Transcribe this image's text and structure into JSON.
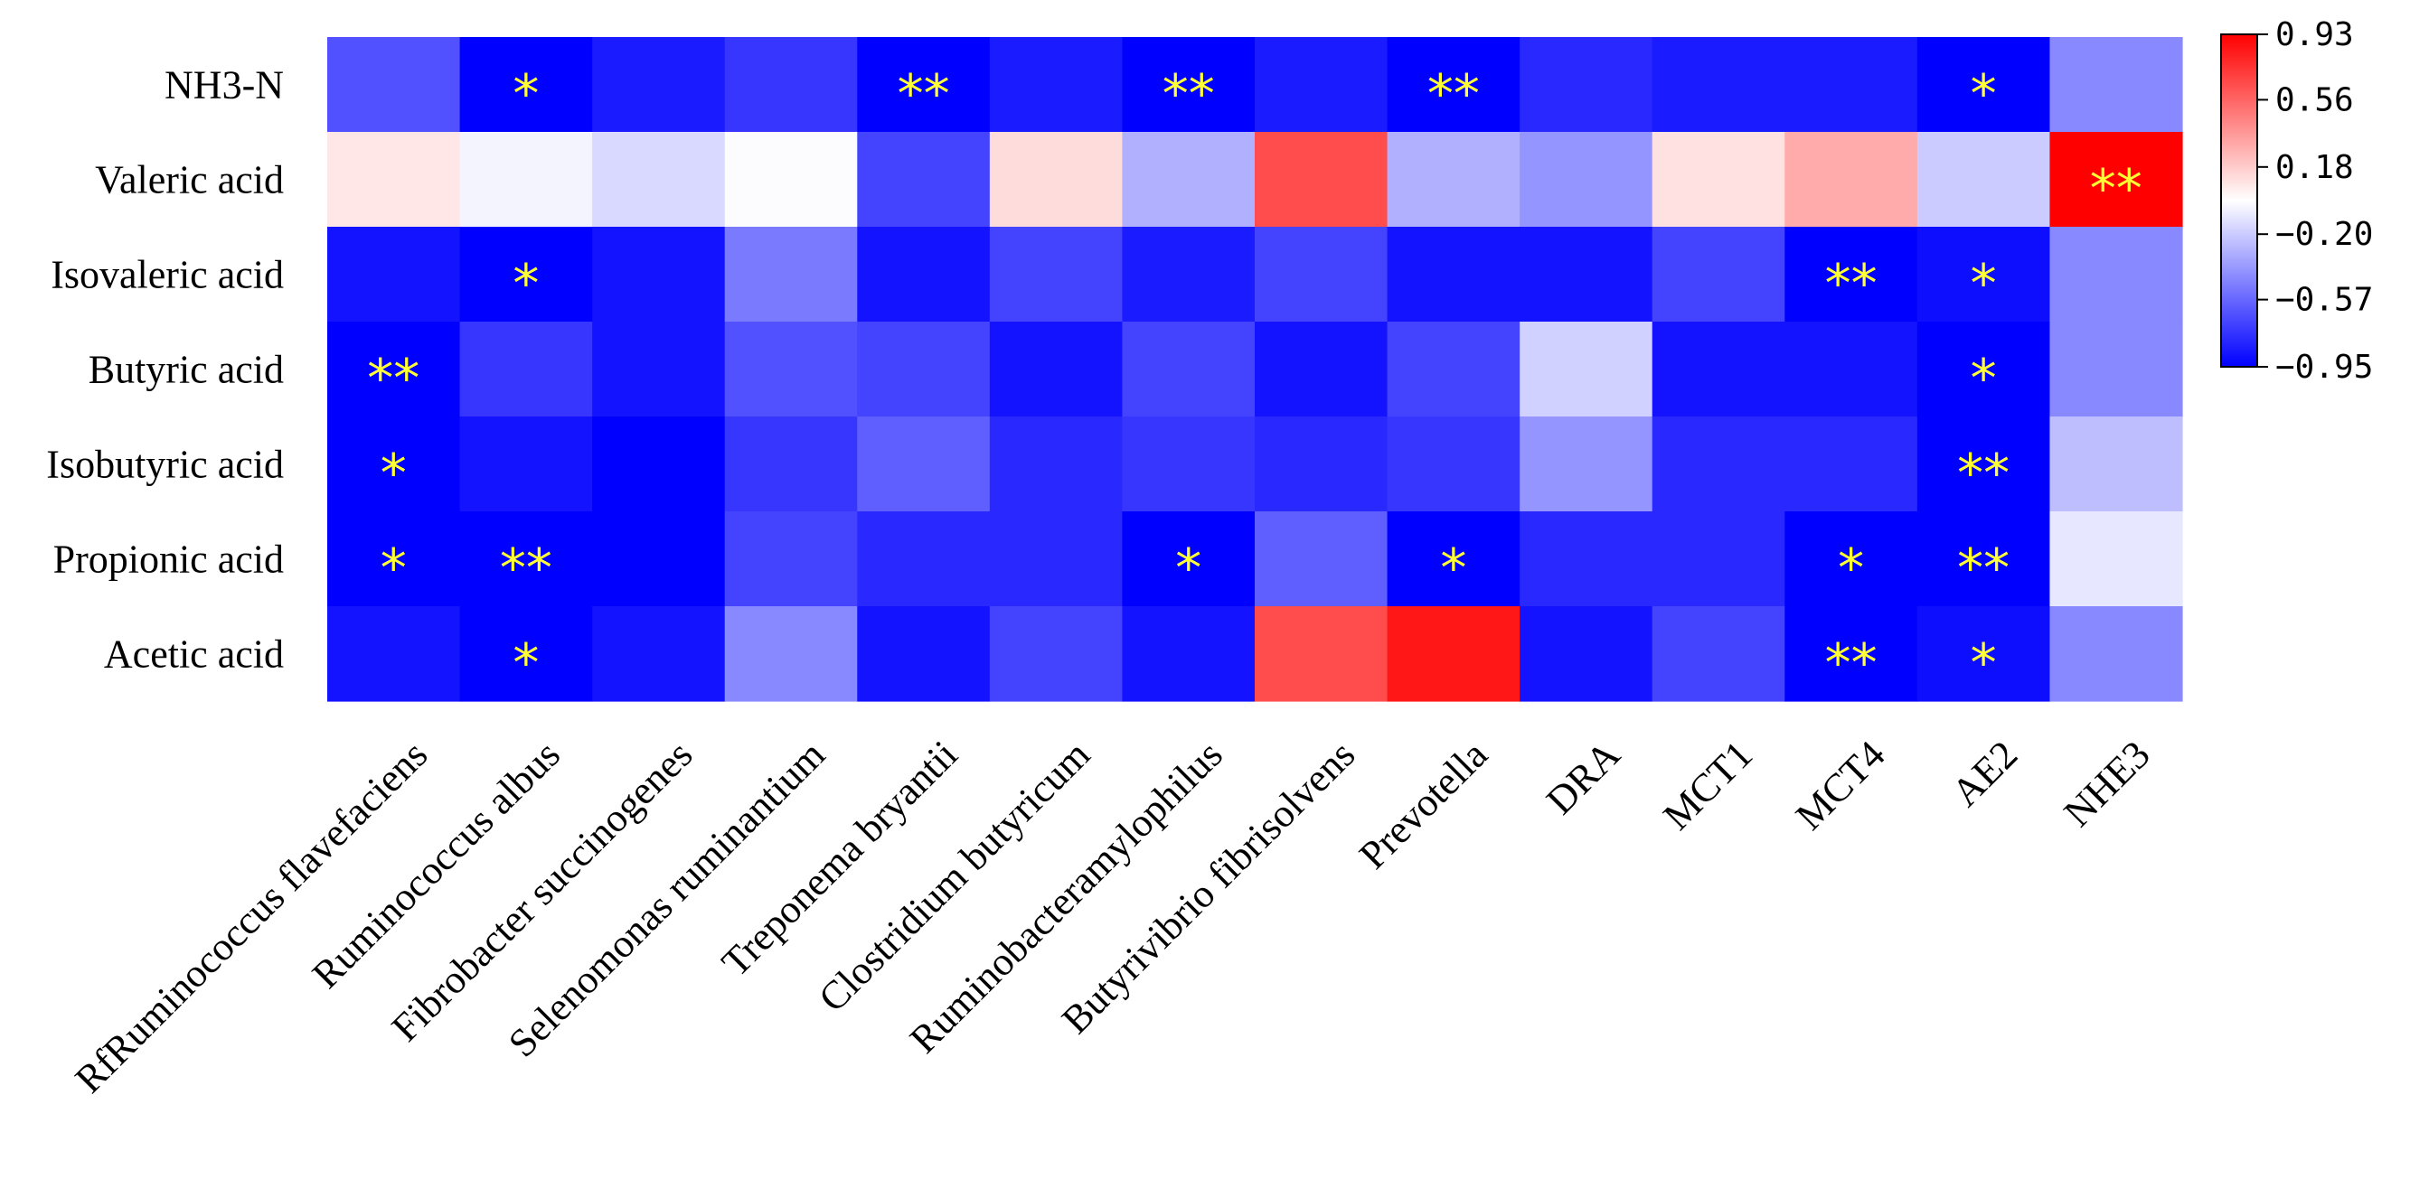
{
  "chart_data": {
    "type": "heatmap",
    "title": "",
    "rows": [
      "NH3-N",
      "Valeric acid",
      "Isovaleric acid",
      "Butyric acid",
      "Isobutyric acid",
      "Propionic acid",
      "Acetic acid"
    ],
    "columns": [
      "RfRuminococcus flavefaciens",
      "Ruminococcus albus",
      "Fibrobacter succinogenes",
      "Selenomonas ruminantium",
      "Treponema bryantii",
      "Clostridium butyricum",
      "Ruminobacteramylophilus",
      "Butyrivibrio fibrisolvens",
      "Prevotella",
      "DRA",
      "MCT1",
      "MCT4",
      "AE2",
      "NHE3"
    ],
    "values": [
      [
        -0.65,
        -0.95,
        -0.85,
        -0.75,
        -0.95,
        -0.85,
        -0.95,
        -0.85,
        -0.95,
        -0.8,
        -0.85,
        -0.85,
        -0.95,
        -0.45
      ],
      [
        0.08,
        -0.05,
        -0.15,
        -0.02,
        -0.7,
        0.12,
        -0.3,
        0.65,
        -0.3,
        -0.4,
        0.1,
        0.3,
        -0.2,
        0.93
      ],
      [
        -0.88,
        -0.95,
        -0.88,
        -0.5,
        -0.88,
        -0.7,
        -0.85,
        -0.7,
        -0.88,
        -0.88,
        -0.7,
        -0.95,
        -0.9,
        -0.45
      ],
      [
        -0.95,
        -0.75,
        -0.88,
        -0.65,
        -0.7,
        -0.88,
        -0.7,
        -0.88,
        -0.7,
        -0.18,
        -0.88,
        -0.88,
        -0.95,
        -0.45
      ],
      [
        -0.95,
        -0.88,
        -0.97,
        -0.75,
        -0.6,
        -0.8,
        -0.75,
        -0.8,
        -0.75,
        -0.4,
        -0.8,
        -0.8,
        -0.95,
        -0.25
      ],
      [
        -0.95,
        -0.95,
        -0.97,
        -0.7,
        -0.8,
        -0.8,
        -0.95,
        -0.6,
        -0.95,
        -0.8,
        -0.8,
        -0.95,
        -0.95,
        -0.1
      ],
      [
        -0.88,
        -0.95,
        -0.88,
        -0.45,
        -0.88,
        -0.7,
        -0.88,
        0.65,
        0.85,
        -0.88,
        -0.7,
        -0.95,
        -0.9,
        -0.45
      ]
    ],
    "significance": [
      [
        "",
        "*",
        "",
        "",
        "**",
        "",
        "**",
        "",
        "**",
        "",
        "",
        "",
        "*",
        ""
      ],
      [
        "",
        "",
        "",
        "",
        "",
        "",
        "",
        "",
        "",
        "",
        "",
        "",
        "",
        "**"
      ],
      [
        "",
        "*",
        "",
        "",
        "",
        "",
        "",
        "",
        "",
        "",
        "",
        "**",
        "*",
        ""
      ],
      [
        "**",
        "",
        "",
        "",
        "",
        "",
        "",
        "",
        "",
        "",
        "",
        "",
        "*",
        ""
      ],
      [
        "*",
        "",
        "",
        "",
        "",
        "",
        "",
        "",
        "",
        "",
        "",
        "",
        "**",
        ""
      ],
      [
        "*",
        "**",
        "",
        "",
        "",
        "",
        "*",
        "",
        "*",
        "",
        "",
        "*",
        "**",
        ""
      ],
      [
        "",
        "*",
        "",
        "",
        "",
        "",
        "",
        "",
        "",
        "",
        "",
        "**",
        "*",
        ""
      ]
    ],
    "colorbar": {
      "range": [
        -0.95,
        0.93
      ],
      "ticks": [
        0.93,
        0.56,
        0.18,
        -0.2,
        -0.57,
        -0.95
      ],
      "tick_labels": [
        "0.93",
        "0.56",
        "0.18",
        "−0.20",
        "−0.57",
        "−0.95"
      ],
      "colors": {
        "low": "#0000ff",
        "mid": "#ffffff",
        "high": "#ff0000"
      }
    },
    "xlabel": "",
    "ylabel": ""
  }
}
